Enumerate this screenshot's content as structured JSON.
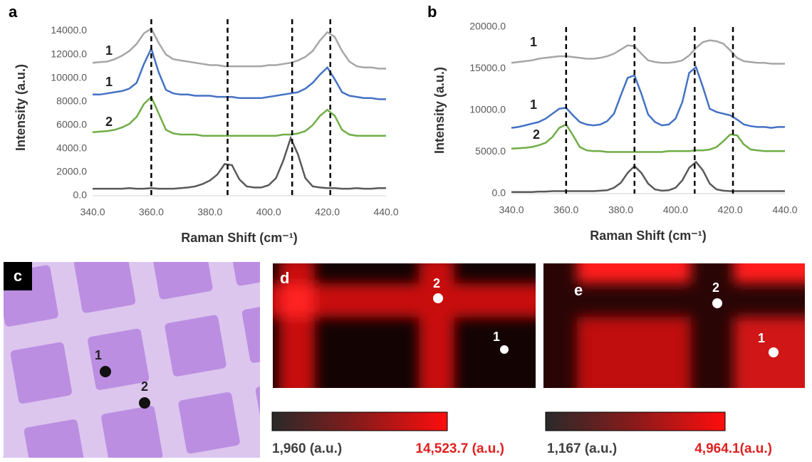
{
  "chart_data": [
    {
      "type": "line",
      "panel_label": "a",
      "y_label": "Intensity (a.u.)",
      "x_label": "Raman Shift (cm⁻¹)",
      "x": [
        340,
        342.5,
        345,
        347.5,
        350,
        352.5,
        355,
        357.5,
        360,
        362.5,
        365,
        367.5,
        370,
        372.5,
        375,
        377.5,
        380,
        382.5,
        385,
        387.5,
        390,
        392.5,
        395,
        397.5,
        400,
        402.5,
        405,
        407.5,
        410,
        412.5,
        415,
        417.5,
        420,
        422.5,
        425,
        427.5,
        430,
        432.5,
        435,
        437.5,
        440
      ],
      "xlim": [
        340,
        440
      ],
      "xticks": [
        {
          "value": 340,
          "label": "340.0"
        },
        {
          "value": 360,
          "label": "360.0"
        },
        {
          "value": 380,
          "label": "380.0"
        },
        {
          "value": 400,
          "label": "400.0"
        },
        {
          "value": 420,
          "label": "420.0"
        },
        {
          "value": 440,
          "label": "440.0"
        }
      ],
      "ylim": [
        0,
        15000
      ],
      "yticks": [
        {
          "value": 0,
          "label": "0.0"
        },
        {
          "value": 2000,
          "label": "2000.0"
        },
        {
          "value": 4000,
          "label": "4000.0"
        },
        {
          "value": 6000,
          "label": "6000.0"
        },
        {
          "value": 8000,
          "label": "8000.0"
        },
        {
          "value": 10000,
          "label": "10000.0"
        },
        {
          "value": 12000,
          "label": "12000.0"
        },
        {
          "value": 14000,
          "label": "14000.0"
        }
      ],
      "vlines": [
        360,
        386,
        408,
        421
      ],
      "annotations": [
        "1",
        "1",
        "2"
      ],
      "series": [
        {
          "color": "#a6a6a6",
          "values": [
            11300,
            11350,
            11400,
            11600,
            11900,
            12300,
            12900,
            13800,
            14200,
            13000,
            12000,
            11600,
            11500,
            11400,
            11300,
            11200,
            11100,
            11100,
            11000,
            11000,
            11000,
            11000,
            11000,
            11000,
            11100,
            11100,
            11200,
            11300,
            11500,
            11800,
            12300,
            13200,
            13900,
            13500,
            12300,
            11400,
            11000,
            10900,
            10900,
            10800,
            10800
          ]
        },
        {
          "color": "#4472c4",
          "values": [
            8600,
            8600,
            8700,
            8800,
            8900,
            9100,
            9600,
            11200,
            12500,
            10500,
            9000,
            8700,
            8600,
            8600,
            8500,
            8500,
            8500,
            8400,
            8400,
            8400,
            8300,
            8300,
            8300,
            8300,
            8400,
            8500,
            8600,
            8700,
            8800,
            9100,
            9600,
            10300,
            10900,
            9900,
            8800,
            8500,
            8400,
            8300,
            8300,
            8200,
            8200
          ]
        },
        {
          "color": "#70ad47",
          "values": [
            5400,
            5450,
            5500,
            5600,
            5800,
            6100,
            6700,
            7800,
            8400,
            7000,
            5600,
            5300,
            5200,
            5200,
            5200,
            5100,
            5100,
            5100,
            5100,
            5100,
            5100,
            5100,
            5100,
            5100,
            5100,
            5100,
            5200,
            5200,
            5300,
            5500,
            6000,
            6800,
            7300,
            6800,
            5600,
            5200,
            5100,
            5100,
            5100,
            5100,
            5100
          ]
        },
        {
          "color": "#595959",
          "values": [
            600,
            600,
            600,
            600,
            600,
            650,
            600,
            600,
            650,
            600,
            600,
            600,
            650,
            700,
            800,
            1000,
            1300,
            1800,
            2700,
            2600,
            1400,
            800,
            700,
            700,
            900,
            1500,
            3000,
            4900,
            3500,
            1500,
            800,
            700,
            650,
            650,
            600,
            600,
            650,
            600,
            600,
            650,
            650
          ]
        }
      ]
    },
    {
      "type": "line",
      "panel_label": "b",
      "y_label": "Intensity (a.u.)",
      "x_label": "Raman Shift (cm⁻¹)",
      "x": [
        340,
        342.5,
        345,
        347.5,
        350,
        352.5,
        355,
        357.5,
        360,
        362.5,
        365,
        367.5,
        370,
        372.5,
        375,
        377.5,
        380,
        382.5,
        385,
        387.5,
        390,
        392.5,
        395,
        397.5,
        400,
        402.5,
        405,
        407.5,
        410,
        412.5,
        415,
        417.5,
        420,
        422.5,
        425,
        427.5,
        430,
        432.5,
        435,
        437.5,
        440
      ],
      "xlim": [
        340,
        440
      ],
      "xticks": [
        {
          "value": 340,
          "label": "340.0"
        },
        {
          "value": 360,
          "label": "360.0"
        },
        {
          "value": 380,
          "label": "380.0"
        },
        {
          "value": 400,
          "label": "400.0"
        },
        {
          "value": 420,
          "label": "420.0"
        },
        {
          "value": 440,
          "label": "440.0"
        }
      ],
      "ylim": [
        0,
        20000
      ],
      "yticks": [
        {
          "value": 0,
          "label": "0.0"
        },
        {
          "value": 5000,
          "label": "5000.0"
        },
        {
          "value": 10000,
          "label": "10000.0"
        },
        {
          "value": 15000,
          "label": "15000.0"
        },
        {
          "value": 20000,
          "label": "20000.0"
        }
      ],
      "vlines": [
        360,
        385,
        407,
        421
      ],
      "annotations": [
        "1",
        "1",
        "2"
      ],
      "series": [
        {
          "color": "#a6a6a6",
          "values": [
            15700,
            15800,
            15900,
            16000,
            16200,
            16300,
            16400,
            16500,
            16500,
            16400,
            16300,
            16200,
            16200,
            16300,
            16500,
            16800,
            17300,
            17800,
            17700,
            16800,
            16000,
            15800,
            15700,
            15700,
            15800,
            16000,
            16600,
            17500,
            18200,
            18400,
            18300,
            18000,
            17200,
            16300,
            15900,
            15800,
            15700,
            15700,
            15600,
            15600,
            15600
          ]
        },
        {
          "color": "#4472c4",
          "values": [
            7900,
            8000,
            8200,
            8400,
            8600,
            9000,
            9600,
            10200,
            10300,
            9400,
            8600,
            8300,
            8200,
            8300,
            8700,
            9600,
            11800,
            13900,
            14200,
            12000,
            9500,
            8600,
            8200,
            8300,
            9000,
            11000,
            14500,
            15200,
            12800,
            10200,
            9800,
            9600,
            9400,
            8900,
            8300,
            8100,
            8000,
            8000,
            7900,
            8000,
            8000
          ]
        },
        {
          "color": "#70ad47",
          "values": [
            5400,
            5450,
            5500,
            5600,
            5800,
            6100,
            6800,
            7900,
            8300,
            7000,
            5600,
            5200,
            5100,
            5100,
            5000,
            5000,
            5000,
            5000,
            5000,
            5000,
            5000,
            5000,
            5000,
            5100,
            5100,
            5100,
            5100,
            5200,
            5200,
            5300,
            5600,
            6300,
            7100,
            7000,
            5900,
            5300,
            5200,
            5100,
            5100,
            5100,
            5100
          ]
        },
        {
          "color": "#595959",
          "values": [
            200,
            200,
            200,
            200,
            250,
            250,
            300,
            300,
            300,
            300,
            300,
            300,
            300,
            350,
            400,
            700,
            1300,
            2500,
            3300,
            2500,
            1200,
            500,
            350,
            400,
            700,
            1600,
            3100,
            3800,
            2800,
            1200,
            500,
            350,
            300,
            300,
            300,
            300,
            300,
            300,
            300,
            300,
            300
          ]
        }
      ]
    }
  ],
  "maps": [
    {
      "label": "c",
      "points": [
        "1",
        "2"
      ]
    },
    {
      "label": "d",
      "points": [
        "2",
        "1"
      ],
      "colorbar": {
        "min": {
          "value": 1960,
          "label": "1,960 (a.u.)"
        },
        "max": {
          "value": 14523.7,
          "label": "14,523.7 (a.u.)"
        }
      }
    },
    {
      "label": "e",
      "points": [
        "2",
        "1"
      ],
      "colorbar": {
        "min": {
          "value": 1167,
          "label": "1,167 (a.u.)"
        },
        "max": {
          "value": 4964.1,
          "label": "4,964.1(a.u.)"
        }
      }
    }
  ]
}
